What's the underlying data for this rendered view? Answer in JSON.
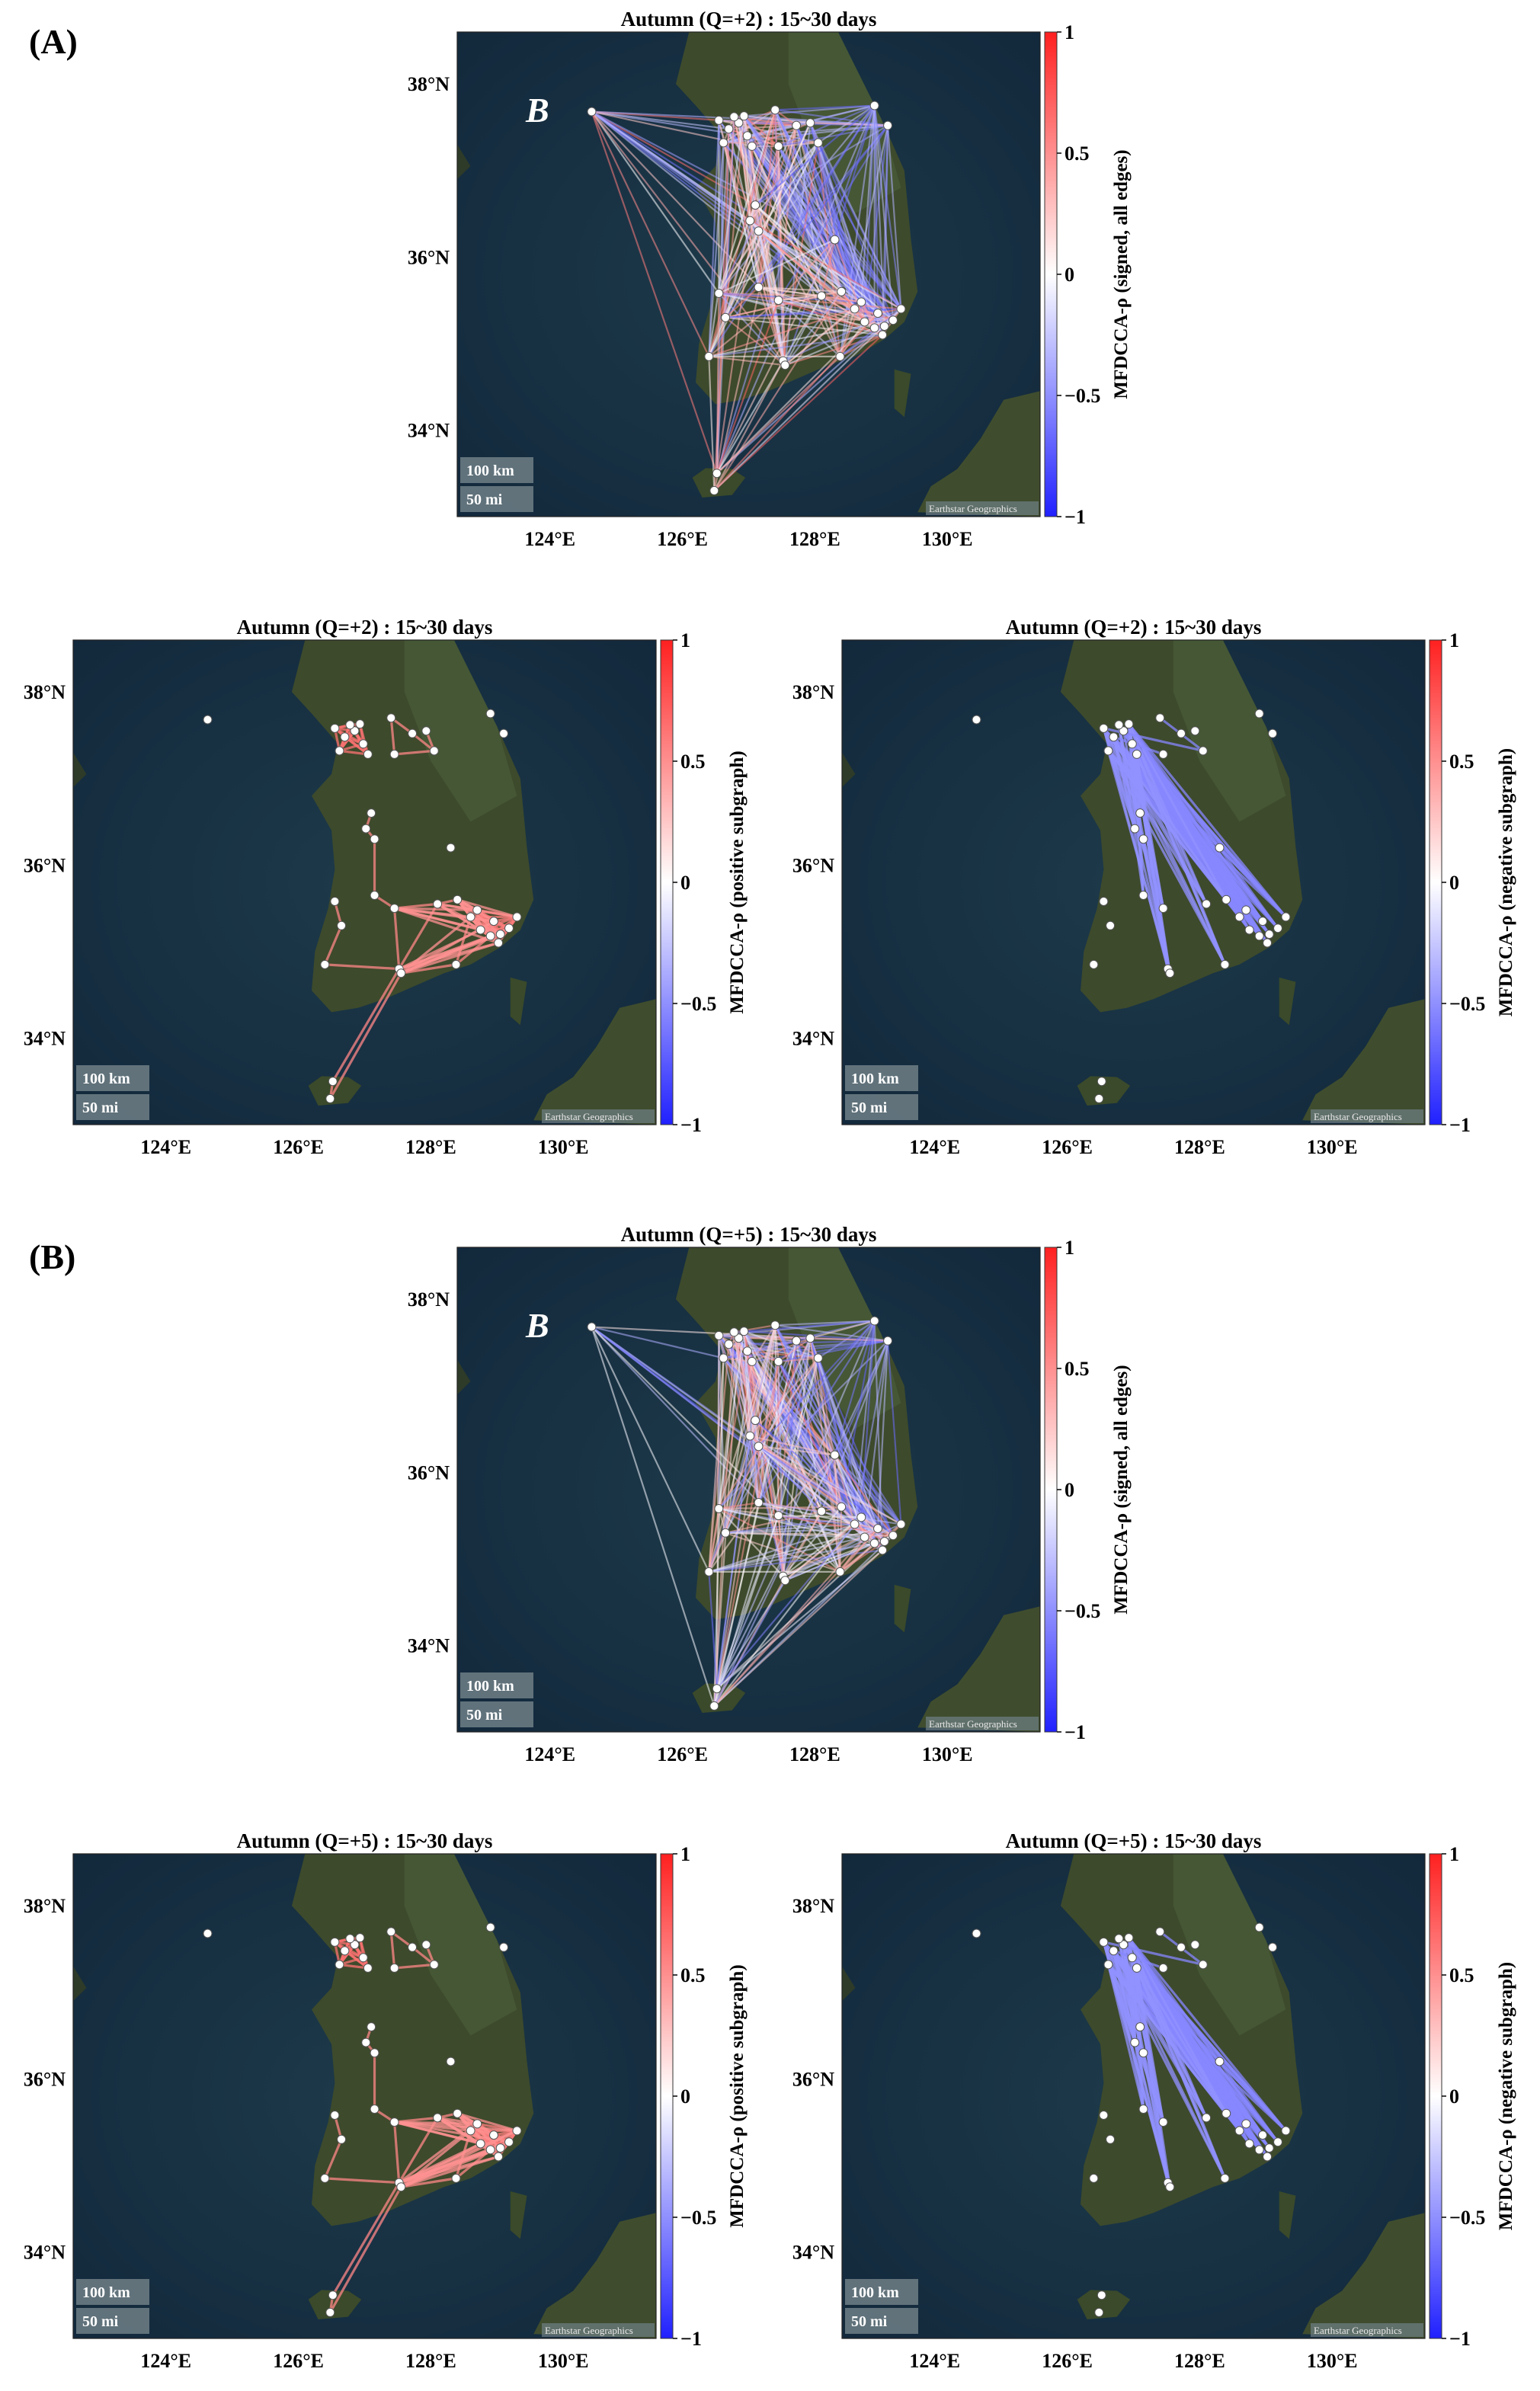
{
  "panel_labels": {
    "a": "(A)",
    "b": "(B)"
  },
  "colors": {
    "positive": "#ff3b3b",
    "negative": "#3b3bff",
    "neutral": "#ffffff",
    "land": "#3a4a2a",
    "sea": "#173040"
  },
  "map_extent": {
    "lon": [
      122.6,
      131.4
    ],
    "lat": [
      33.0,
      38.6
    ]
  },
  "chart_data": [
    {
      "type": "map-network",
      "title": "Autumn (Q=+2) : 15~30 days",
      "colorbar_label": "MFDCCA-ρ (signed, all edges)",
      "colorbar_ticks": [
        "1",
        "0.5",
        "0",
        "−0.5",
        "−1"
      ],
      "x_ticks": [
        "124°E",
        "126°E",
        "128°E",
        "130°E"
      ],
      "y_ticks": [
        "38°N",
        "36°N",
        "34°N"
      ],
      "scale_bar": [
        "100 km",
        "50 mi"
      ],
      "attribution": "Earthstar Geographics",
      "annotation": "B",
      "edges": "all"
    },
    {
      "type": "map-network",
      "title": "Autumn (Q=+2) : 15~30 days",
      "colorbar_label": "MFDCCA-ρ (positive subgraph)",
      "colorbar_ticks": [
        "1",
        "0.5",
        "0",
        "−0.5",
        "−1"
      ],
      "x_ticks": [
        "124°E",
        "126°E",
        "128°E",
        "130°E"
      ],
      "y_ticks": [
        "38°N",
        "36°N",
        "34°N"
      ],
      "scale_bar": [
        "100 km",
        "50 mi"
      ],
      "attribution": "Earthstar Geographics",
      "edges": "positive"
    },
    {
      "type": "map-network",
      "title": "Autumn (Q=+2) : 15~30 days",
      "colorbar_label": "MFDCCA-ρ (negative subgraph)",
      "colorbar_ticks": [
        "1",
        "0.5",
        "0",
        "−0.5",
        "−1"
      ],
      "x_ticks": [
        "124°E",
        "126°E",
        "128°E",
        "130°E"
      ],
      "y_ticks": [
        "38°N",
        "36°N",
        "34°N"
      ],
      "scale_bar": [
        "100 km",
        "50 mi"
      ],
      "attribution": "Earthstar Geographics",
      "edges": "negative"
    },
    {
      "type": "map-network",
      "title": "Autumn (Q=+5) : 15~30 days",
      "colorbar_label": "MFDCCA-ρ (signed, all edges)",
      "colorbar_ticks": [
        "1",
        "0.5",
        "0",
        "−0.5",
        "−1"
      ],
      "x_ticks": [
        "124°E",
        "126°E",
        "128°E",
        "130°E"
      ],
      "y_ticks": [
        "38°N",
        "36°N",
        "34°N"
      ],
      "scale_bar": [
        "100 km",
        "50 mi"
      ],
      "attribution": "Earthstar Geographics",
      "annotation": "B",
      "edges": "all"
    },
    {
      "type": "map-network",
      "title": "Autumn (Q=+5) : 15~30 days",
      "colorbar_label": "MFDCCA-ρ (positive subgraph)",
      "colorbar_ticks": [
        "1",
        "0.5",
        "0",
        "−0.5",
        "−1"
      ],
      "x_ticks": [
        "124°E",
        "126°E",
        "128°E",
        "130°E"
      ],
      "y_ticks": [
        "38°N",
        "36°N",
        "34°N"
      ],
      "scale_bar": [
        "100 km",
        "50 mi"
      ],
      "attribution": "Earthstar Geographics",
      "edges": "positive"
    },
    {
      "type": "map-network",
      "title": "Autumn (Q=+5) : 15~30 days",
      "colorbar_label": "MFDCCA-ρ (negative subgraph)",
      "colorbar_ticks": [
        "1",
        "0.5",
        "0",
        "−0.5",
        "−1"
      ],
      "x_ticks": [
        "124°E",
        "126°E",
        "128°E",
        "130°E"
      ],
      "y_ticks": [
        "38°N",
        "36°N",
        "34°N"
      ],
      "scale_bar": [
        "100 km",
        "50 mi"
      ],
      "attribution": "Earthstar Geographics",
      "edges": "negative"
    }
  ],
  "stations": [
    {
      "lon": 124.63,
      "lat": 37.68
    },
    {
      "lon": 126.55,
      "lat": 37.58
    },
    {
      "lon": 126.7,
      "lat": 37.48
    },
    {
      "lon": 126.85,
      "lat": 37.55
    },
    {
      "lon": 126.98,
      "lat": 37.4
    },
    {
      "lon": 126.62,
      "lat": 37.32
    },
    {
      "lon": 127.05,
      "lat": 37.28
    },
    {
      "lon": 126.78,
      "lat": 37.62
    },
    {
      "lon": 126.93,
      "lat": 37.63
    },
    {
      "lon": 127.4,
      "lat": 37.7
    },
    {
      "lon": 127.72,
      "lat": 37.52
    },
    {
      "lon": 127.45,
      "lat": 37.28
    },
    {
      "lon": 128.05,
      "lat": 37.32
    },
    {
      "lon": 127.93,
      "lat": 37.55
    },
    {
      "lon": 129.1,
      "lat": 37.52
    },
    {
      "lon": 128.9,
      "lat": 37.75
    },
    {
      "lon": 127.1,
      "lat": 36.6
    },
    {
      "lon": 127.02,
      "lat": 36.42
    },
    {
      "lon": 127.15,
      "lat": 36.3
    },
    {
      "lon": 128.3,
      "lat": 36.2
    },
    {
      "lon": 126.55,
      "lat": 35.58
    },
    {
      "lon": 126.65,
      "lat": 35.3
    },
    {
      "lon": 127.15,
      "lat": 35.65
    },
    {
      "lon": 127.45,
      "lat": 35.5
    },
    {
      "lon": 128.1,
      "lat": 35.55
    },
    {
      "lon": 128.4,
      "lat": 35.6
    },
    {
      "lon": 128.6,
      "lat": 35.4
    },
    {
      "lon": 128.75,
      "lat": 35.25
    },
    {
      "lon": 128.9,
      "lat": 35.18
    },
    {
      "lon": 129.05,
      "lat": 35.2
    },
    {
      "lon": 129.02,
      "lat": 35.1
    },
    {
      "lon": 129.18,
      "lat": 35.27
    },
    {
      "lon": 129.3,
      "lat": 35.4
    },
    {
      "lon": 128.95,
      "lat": 35.35
    },
    {
      "lon": 128.7,
      "lat": 35.48
    },
    {
      "lon": 127.52,
      "lat": 34.8
    },
    {
      "lon": 127.55,
      "lat": 34.75
    },
    {
      "lon": 126.4,
      "lat": 34.85
    },
    {
      "lon": 128.38,
      "lat": 34.85
    },
    {
      "lon": 126.52,
      "lat": 33.5
    },
    {
      "lon": 126.48,
      "lat": 33.3
    }
  ]
}
